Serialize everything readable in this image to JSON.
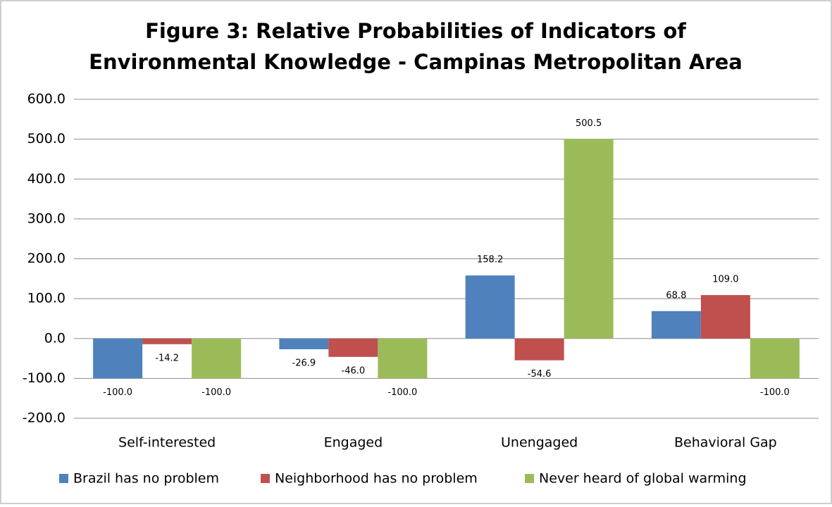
{
  "chart_data": {
    "type": "bar",
    "title": [
      "Figure 3: Relative Probabilities of Indicators of",
      "Environmental Knowledge - Campinas Metropolitan Area"
    ],
    "categories": [
      "Self-interested",
      "Engaged",
      "Unengaged",
      "Behavioral Gap"
    ],
    "series": [
      {
        "name": "Brazil has no problem",
        "color": "#4f81bd",
        "values": [
          -100.0,
          -26.9,
          158.2,
          68.8
        ],
        "value_labels": [
          "-100.0",
          "-26.9",
          "158.2",
          "68.8"
        ]
      },
      {
        "name": "Neighborhood has no problem",
        "color": "#c0504d",
        "values": [
          -14.2,
          -46.0,
          -54.6,
          109.0
        ],
        "value_labels": [
          "-14.2",
          "-46.0",
          "-54.6",
          "109.0"
        ]
      },
      {
        "name": "Never heard of global warming",
        "color": "#9bbb59",
        "values": [
          -100.0,
          -100.0,
          500.5,
          -100.0
        ],
        "value_labels": [
          "-100.0",
          "-100.0",
          "500.5",
          "-100.0"
        ]
      }
    ],
    "ylim": [
      -200,
      600
    ],
    "yticks": [
      {
        "value": -200,
        "label": "-200.0"
      },
      {
        "value": -100,
        "label": "-100.0"
      },
      {
        "value": 0,
        "label": "0.0"
      },
      {
        "value": 100,
        "label": "100.0"
      },
      {
        "value": 200,
        "label": "200.0"
      },
      {
        "value": 300,
        "label": "300.0"
      },
      {
        "value": 400,
        "label": "400.0"
      },
      {
        "value": 500,
        "label": "500.0"
      },
      {
        "value": 600,
        "label": "600.0"
      }
    ],
    "grid": true,
    "legend": "bottom"
  }
}
